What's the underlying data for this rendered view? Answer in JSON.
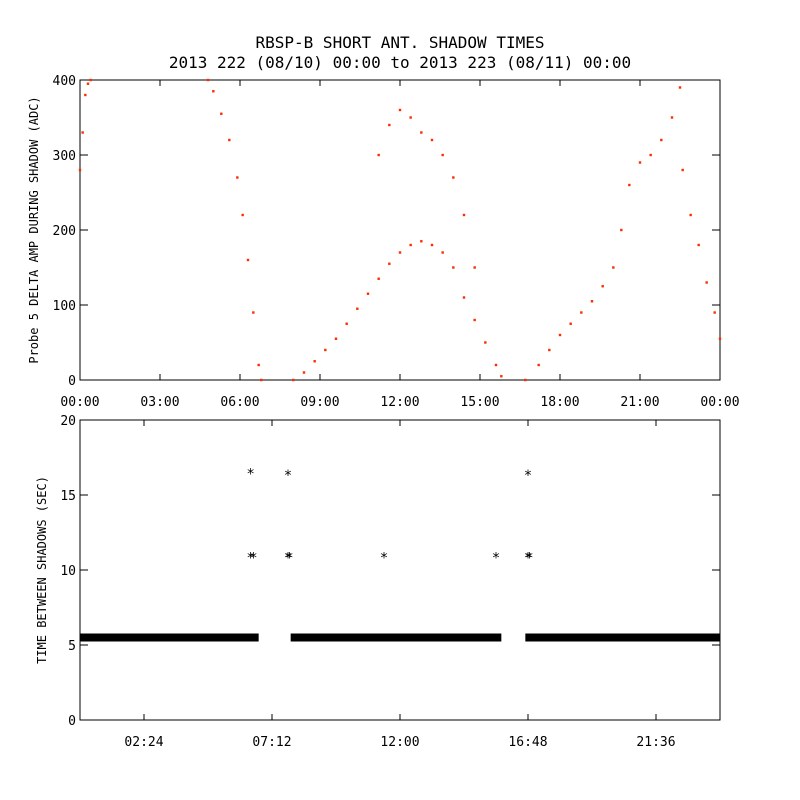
{
  "title": "RBSP-B SHORT ANT. SHADOW TIMES",
  "subtitle": "2013 222 (08/10) 00:00 to 2013 223 (08/11) 00:00",
  "colors": {
    "top_series": "#ff2a00",
    "bottom_series": "#000000",
    "axes": "#000000",
    "background": "#ffffff"
  },
  "chart_data": [
    {
      "type": "scatter",
      "ylabel": "Probe 5 DELTA AMP DURING SHADOW (ADC)",
      "xlim_hours": [
        0,
        24
      ],
      "ylim": [
        0,
        400
      ],
      "x_ticks": [
        "00:00",
        "03:00",
        "06:00",
        "09:00",
        "12:00",
        "15:00",
        "18:00",
        "21:00",
        "00:00"
      ],
      "y_ticks": [
        "0",
        "100",
        "200",
        "300",
        "400"
      ],
      "series": [
        {
          "points": [
            [
              0.0,
              280
            ],
            [
              0.1,
              330
            ],
            [
              0.2,
              380
            ],
            [
              0.3,
              395
            ],
            [
              0.4,
              400
            ],
            [
              4.8,
              400
            ],
            [
              5.0,
              385
            ],
            [
              5.3,
              355
            ],
            [
              5.6,
              320
            ],
            [
              5.9,
              270
            ],
            [
              6.1,
              220
            ],
            [
              6.3,
              160
            ],
            [
              6.5,
              90
            ],
            [
              6.7,
              20
            ],
            [
              6.8,
              0
            ],
            [
              8.0,
              0
            ],
            [
              8.4,
              10
            ],
            [
              8.8,
              25
            ],
            [
              9.2,
              40
            ],
            [
              9.6,
              55
            ],
            [
              10.0,
              75
            ],
            [
              10.4,
              95
            ],
            [
              10.8,
              115
            ],
            [
              11.2,
              135
            ],
            [
              11.6,
              155
            ],
            [
              12.0,
              170
            ],
            [
              12.4,
              180
            ],
            [
              12.8,
              185
            ],
            [
              13.2,
              180
            ],
            [
              13.6,
              170
            ],
            [
              14.0,
              150
            ],
            [
              14.4,
              110
            ],
            [
              14.8,
              80
            ],
            [
              15.2,
              50
            ],
            [
              15.6,
              20
            ],
            [
              15.8,
              5
            ],
            [
              11.2,
              300
            ],
            [
              11.6,
              340
            ],
            [
              12.0,
              360
            ],
            [
              12.4,
              350
            ],
            [
              12.8,
              330
            ],
            [
              13.2,
              320
            ],
            [
              13.6,
              300
            ],
            [
              14.0,
              270
            ],
            [
              14.4,
              220
            ],
            [
              14.8,
              150
            ],
            [
              16.7,
              0
            ],
            [
              17.2,
              20
            ],
            [
              17.6,
              40
            ],
            [
              18.0,
              60
            ],
            [
              18.4,
              75
            ],
            [
              18.8,
              90
            ],
            [
              19.2,
              105
            ],
            [
              19.6,
              125
            ],
            [
              20.0,
              150
            ],
            [
              20.3,
              200
            ],
            [
              20.6,
              260
            ],
            [
              21.0,
              290
            ],
            [
              21.4,
              300
            ],
            [
              21.8,
              320
            ],
            [
              22.2,
              350
            ],
            [
              22.5,
              390
            ],
            [
              22.6,
              280
            ],
            [
              22.9,
              220
            ],
            [
              23.2,
              180
            ],
            [
              23.5,
              130
            ],
            [
              23.8,
              90
            ],
            [
              24.0,
              55
            ]
          ]
        }
      ]
    },
    {
      "type": "scatter",
      "ylabel": "TIME BETWEEN SHADOWS (SEC)",
      "xlim_hours": [
        0,
        24
      ],
      "ylim": [
        0,
        20
      ],
      "x_ticks": [
        "02:24",
        "07:12",
        "12:00",
        "16:48",
        "21:36"
      ],
      "y_ticks": [
        "0",
        "5",
        "10",
        "15",
        "20"
      ],
      "series": [
        {
          "baseline_value": 5.5,
          "baseline_ranges_hours": [
            [
              0.0,
              6.7
            ],
            [
              7.9,
              15.8
            ],
            [
              16.7,
              24.0
            ]
          ],
          "points": [
            [
              6.4,
              16.5
            ],
            [
              6.4,
              10.9
            ],
            [
              6.5,
              10.9
            ],
            [
              7.8,
              16.4
            ],
            [
              7.8,
              10.9
            ],
            [
              7.85,
              10.9
            ],
            [
              11.4,
              10.9
            ],
            [
              15.6,
              10.9
            ],
            [
              16.8,
              16.4
            ],
            [
              16.8,
              10.9
            ],
            [
              16.85,
              10.9
            ]
          ]
        }
      ]
    }
  ]
}
